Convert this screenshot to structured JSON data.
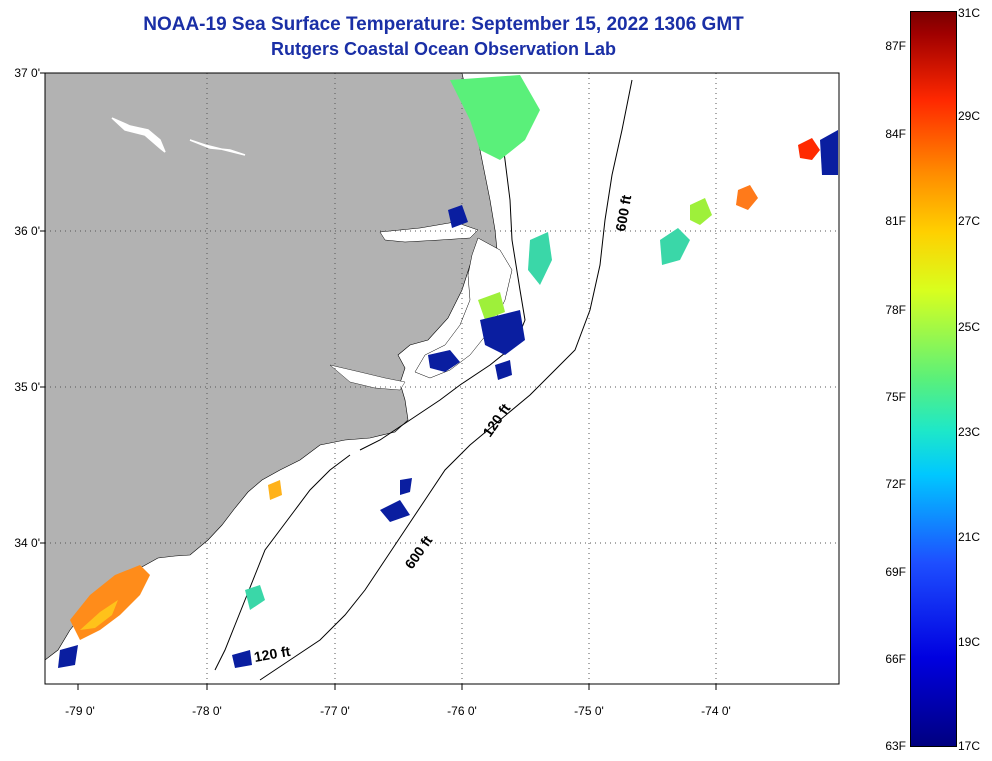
{
  "title": "NOAA-19 Sea Surface Temperature:  September 15, 2022 1306 GMT",
  "subtitle": "Rutgers Coastal Ocean Observation Lab",
  "axes": {
    "lat_labels": [
      "37 0'",
      "36 0'",
      "35 0'",
      "34 0'"
    ],
    "lon_labels": [
      "-79 0'",
      "-78 0'",
      "-77 0'",
      "-76 0'",
      "-75 0'",
      "-74 0'"
    ],
    "lat_range": [
      33.1,
      37.0
    ],
    "lon_range": [
      -79.3,
      -72.9
    ]
  },
  "contours": [
    "120 ft",
    "600 ft",
    "120 ft",
    "600 ft"
  ],
  "colorbar": {
    "fahrenheit": [
      "87F",
      "84F",
      "81F",
      "78F",
      "75F",
      "72F",
      "69F",
      "66F",
      "63F"
    ],
    "celsius": [
      "31C",
      "29C",
      "27C",
      "25C",
      "23C",
      "21C",
      "19C",
      "17C"
    ]
  },
  "colors": {
    "land": "#b2b2b2",
    "title": "#1a2fa6",
    "warm": "#ff8c1a",
    "cold": "#0a1ea0",
    "mid": "#3ad7a8"
  }
}
